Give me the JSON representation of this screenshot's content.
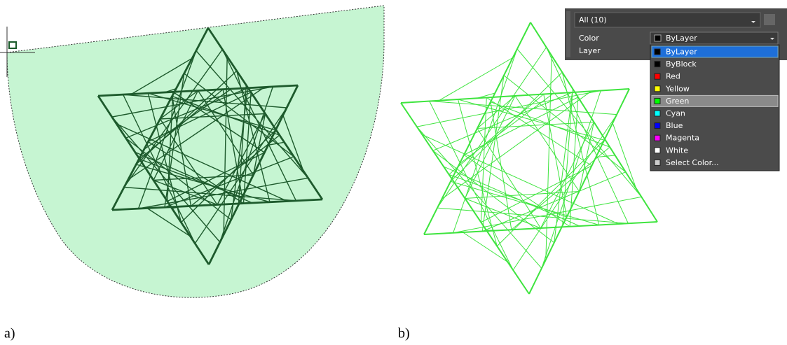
{
  "labels": {
    "a": "a)",
    "b": "b)"
  },
  "panel": {
    "selection": "All (10)",
    "properties": [
      {
        "name": "Color",
        "value": "ByLayer"
      },
      {
        "name": "Layer"
      }
    ],
    "color_options": [
      {
        "label": "ByLayer",
        "swatch": "#000000"
      },
      {
        "label": "ByBlock",
        "swatch": "#000000"
      },
      {
        "label": "Red",
        "swatch": "#ff0000"
      },
      {
        "label": "Yellow",
        "swatch": "#ffff00"
      },
      {
        "label": "Green",
        "swatch": "#00ff00"
      },
      {
        "label": "Cyan",
        "swatch": "#00ffff"
      },
      {
        "label": "Blue",
        "swatch": "#0000ff"
      },
      {
        "label": "Magenta",
        "swatch": "#ff00ff"
      },
      {
        "label": "White",
        "swatch": "#ffffff"
      },
      {
        "label": "Select Color...",
        "swatch": "#cccccc"
      }
    ]
  }
}
